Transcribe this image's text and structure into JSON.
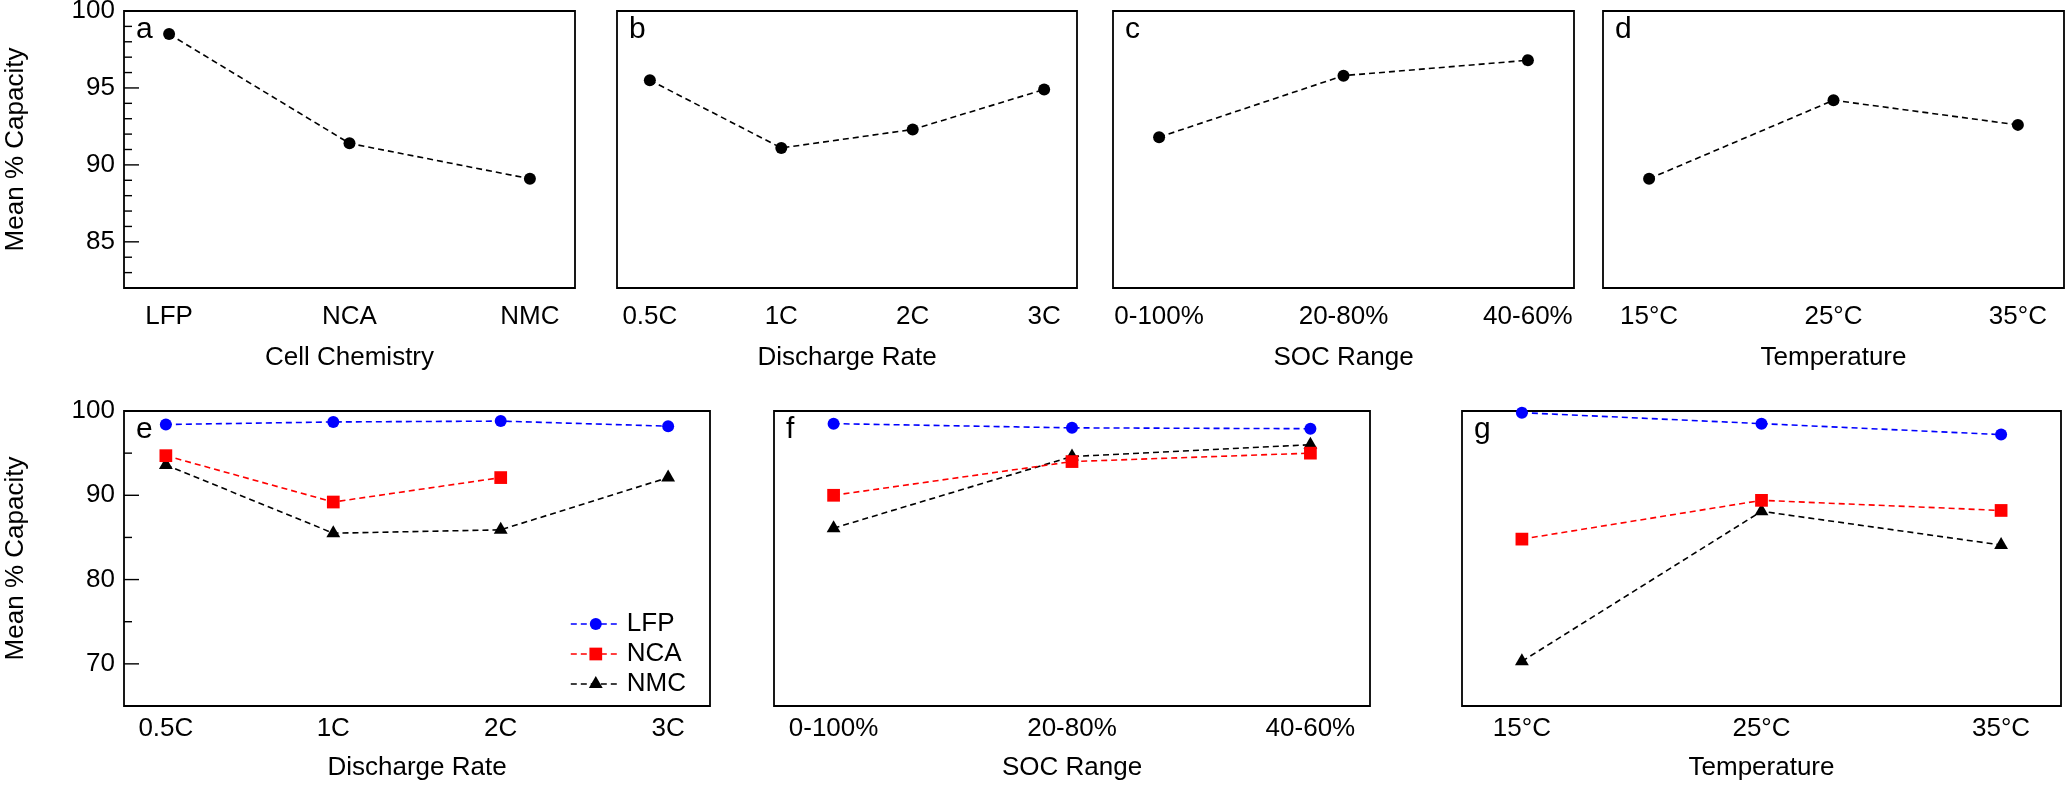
{
  "chart_data": [
    {
      "type": "line",
      "annotations": [
        "a"
      ],
      "categories": [
        "LFP",
        "NCA",
        "NMC"
      ],
      "values": [
        98.5,
        91.4,
        89.1
      ],
      "color": "#000000",
      "marker": "circle",
      "line_style": "dashed",
      "xlabel": "Cell Chemistry",
      "ylabel": "Mean % Capacity",
      "ylim": [
        82,
        100
      ],
      "yticks": [
        {
          "value": 83,
          "label": null
        },
        {
          "value": 84,
          "label": null
        },
        85,
        {
          "value": 86,
          "label": null
        },
        {
          "value": 87,
          "label": null
        },
        {
          "value": 88,
          "label": null
        },
        {
          "value": 89,
          "label": null
        },
        90,
        {
          "value": 91,
          "label": null
        },
        {
          "value": 92,
          "label": null
        },
        {
          "value": 93,
          "label": null
        },
        {
          "value": 94,
          "label": null
        },
        95,
        {
          "value": 96,
          "label": null
        },
        {
          "value": 97,
          "label": null
        },
        {
          "value": 98,
          "label": null
        },
        {
          "value": 99,
          "label": null
        },
        100
      ]
    },
    {
      "type": "line",
      "annotations": [
        "b"
      ],
      "categories": [
        "0.5C",
        "1C",
        "2C",
        "3C"
      ],
      "values": [
        95.5,
        91.1,
        92.3,
        94.9
      ],
      "color": "#000000",
      "marker": "circle",
      "line_style": "dashed",
      "xlabel": "Discharge Rate",
      "ylim": [
        82,
        100
      ],
      "tick_labels": "x"
    },
    {
      "type": "line",
      "annotations": [
        "c"
      ],
      "categories": [
        "0-100%",
        "20-80%",
        "40-60%"
      ],
      "values": [
        91.8,
        95.8,
        96.8
      ],
      "color": "#000000",
      "marker": "circle",
      "line_style": "dashed",
      "xlabel": "SOC Range",
      "ylim": [
        82,
        100
      ],
      "tick_labels": "x"
    },
    {
      "type": "line",
      "annotations": [
        "d"
      ],
      "categories": [
        "15°C",
        "25°C",
        "35°C"
      ],
      "values": [
        89.1,
        94.2,
        92.6
      ],
      "color": "#000000",
      "marker": "circle",
      "line_style": "dashed",
      "xlabel": "Temperature",
      "ylim": [
        82,
        100
      ],
      "tick_labels": "x"
    },
    {
      "type": "line",
      "annotations": [
        "e"
      ],
      "categories": [
        "0.5C",
        "1C",
        "2C",
        "3C"
      ],
      "series": [
        {
          "name": "LFP",
          "color": "#0000ff",
          "marker": "circle",
          "values": [
            98.4,
            98.7,
            98.8,
            98.2
          ]
        },
        {
          "name": "NCA",
          "color": "#ff0000",
          "marker": "square",
          "values": [
            94.7,
            89.2,
            92.1,
            null
          ]
        },
        {
          "name": "NMC",
          "color": "#000000",
          "marker": "triangle",
          "values": [
            93.6,
            85.5,
            85.9,
            92.1
          ]
        }
      ],
      "line_style": "dashed",
      "legend": "bottom right",
      "xlabel": "Discharge Rate",
      "ylabel": "Mean % Capacity",
      "ylim": [
        65,
        100
      ],
      "yticks": [
        70,
        {
          "value": 75,
          "label": null
        },
        80,
        {
          "value": 85,
          "label": null
        },
        90,
        {
          "value": 95,
          "label": null
        },
        100
      ]
    },
    {
      "type": "line",
      "annotations": [
        "f"
      ],
      "categories": [
        "0-100%",
        "20-80%",
        "40-60%"
      ],
      "series": [
        {
          "color": "#0000ff",
          "marker": "circle",
          "values": [
            98.5,
            98.0,
            97.9
          ]
        },
        {
          "color": "#ff0000",
          "marker": "square",
          "values": [
            90.0,
            94.0,
            95.0
          ]
        },
        {
          "color": "#000000",
          "marker": "triangle",
          "values": [
            86.1,
            94.6,
            96.0
          ]
        }
      ],
      "line_style": "dashed",
      "xlabel": "SOC Range",
      "ylim": [
        65,
        100
      ],
      "tick_labels": "x"
    },
    {
      "type": "line",
      "annotations": [
        "g"
      ],
      "categories": [
        "15°C",
        "25°C",
        "35°C"
      ],
      "series": [
        {
          "color": "#0000ff",
          "marker": "circle",
          "values": [
            99.8,
            98.5,
            97.2
          ]
        },
        {
          "color": "#ff0000",
          "marker": "square",
          "values": [
            84.8,
            89.4,
            88.2
          ]
        },
        {
          "color": "#000000",
          "marker": "triangle",
          "values": [
            70.3,
            88.1,
            84.1
          ]
        }
      ],
      "line_style": "dashed",
      "xlabel": "Temperature",
      "ylim": [
        65,
        100
      ],
      "tick_labels": "x"
    }
  ]
}
